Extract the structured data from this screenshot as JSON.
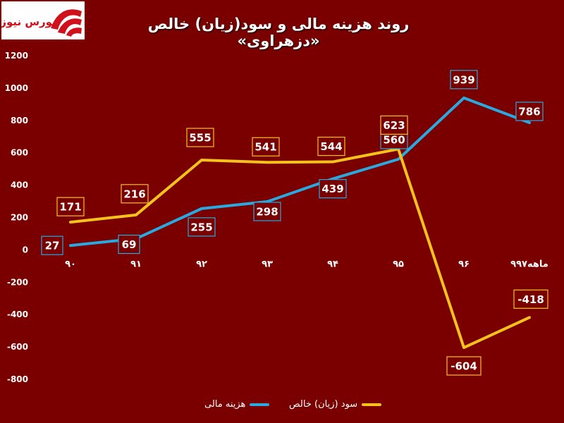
{
  "header": {
    "title": "روند هزینه مالی و سود(زیان) خالص «دزهراوی»",
    "logo_text": "بورس نیوز"
  },
  "colors": {
    "background": "#7a0000",
    "series_cost": "#29a9e0",
    "series_profit": "#f7c31a",
    "label_cost_border": "#29a9e0",
    "label_profit_border": "#f7c31a"
  },
  "chart_data": {
    "type": "line",
    "title": "روند هزینه مالی و سود(زیان) خالص «دزهراوی»",
    "xlabel": "",
    "ylabel": "",
    "categories": [
      "۹۰",
      "۹۱",
      "۹۲",
      "۹۳",
      "۹۴",
      "۹۵",
      "۹۶",
      "۹ماهه۹۷"
    ],
    "ylim": [
      -800,
      1200
    ],
    "yticks": [
      "-800",
      "-600",
      "-400",
      "-200",
      "0",
      "200",
      "400",
      "600",
      "800",
      "1000",
      "1200"
    ],
    "grid": false,
    "legend_position": "bottom",
    "series": [
      {
        "name": "هزینه مالی",
        "key": "cost",
        "values": [
          27,
          69,
          255,
          298,
          439,
          560,
          939,
          786
        ],
        "labels": [
          "27",
          "69",
          "255",
          "298",
          "439",
          "560",
          "939",
          "786"
        ]
      },
      {
        "name": "سود (زیان) خالص",
        "key": "profit",
        "values": [
          171,
          216,
          555,
          541,
          544,
          623,
          -604,
          -418
        ],
        "labels": [
          "171",
          "216",
          "555",
          "541",
          "544",
          "623",
          "-604",
          "-418"
        ]
      }
    ]
  }
}
